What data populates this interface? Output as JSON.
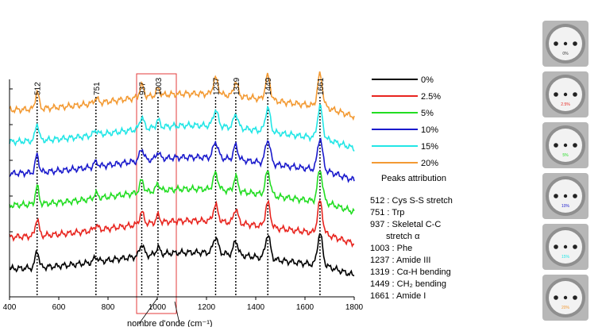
{
  "chart_data": {
    "type": "line",
    "xlabel": "nombre d'onde (cm⁻¹)",
    "xlim": [
      400,
      1800
    ],
    "x_ticks": [
      "400",
      "600",
      "800",
      "1000",
      "1200",
      "1400",
      "1600",
      "1800"
    ],
    "peaks": [
      "512",
      "751",
      "937",
      "1003",
      "1237",
      "1319",
      "1449",
      "1661"
    ],
    "highlight_range": [
      900,
      1050
    ],
    "grid": false,
    "legend_position": "right",
    "series": [
      {
        "name": "0%",
        "color": "#000000",
        "order": 0
      },
      {
        "name": "2.5%",
        "color": "#e8251f",
        "order": 1
      },
      {
        "name": "5%",
        "color": "#22dd22",
        "order": 2
      },
      {
        "name": "10%",
        "color": "#1a1acc",
        "order": 3
      },
      {
        "name": "15%",
        "color": "#22e6e6",
        "order": 4
      },
      {
        "name": "20%",
        "color": "#f39a33",
        "order": 5
      }
    ]
  },
  "attribution": {
    "title": "Peaks attribution",
    "items": [
      "512 : Cys S-S stretch",
      "751 : Trp",
      "937 : Skeletal C-C",
      "stretch α",
      "1003 : Phe",
      "1237 : Amide III",
      "1319 : Cα-H bending",
      "1449 : CH₂ bending",
      "1661 : Amide I"
    ]
  },
  "thumbnails": {
    "labels": [
      "0%",
      "2.5%",
      "5%",
      "10%",
      "15%",
      "20%"
    ],
    "colors": [
      "#333333",
      "#e8251f",
      "#22dd22",
      "#1a1acc",
      "#22e6e6",
      "#f39a33"
    ]
  }
}
